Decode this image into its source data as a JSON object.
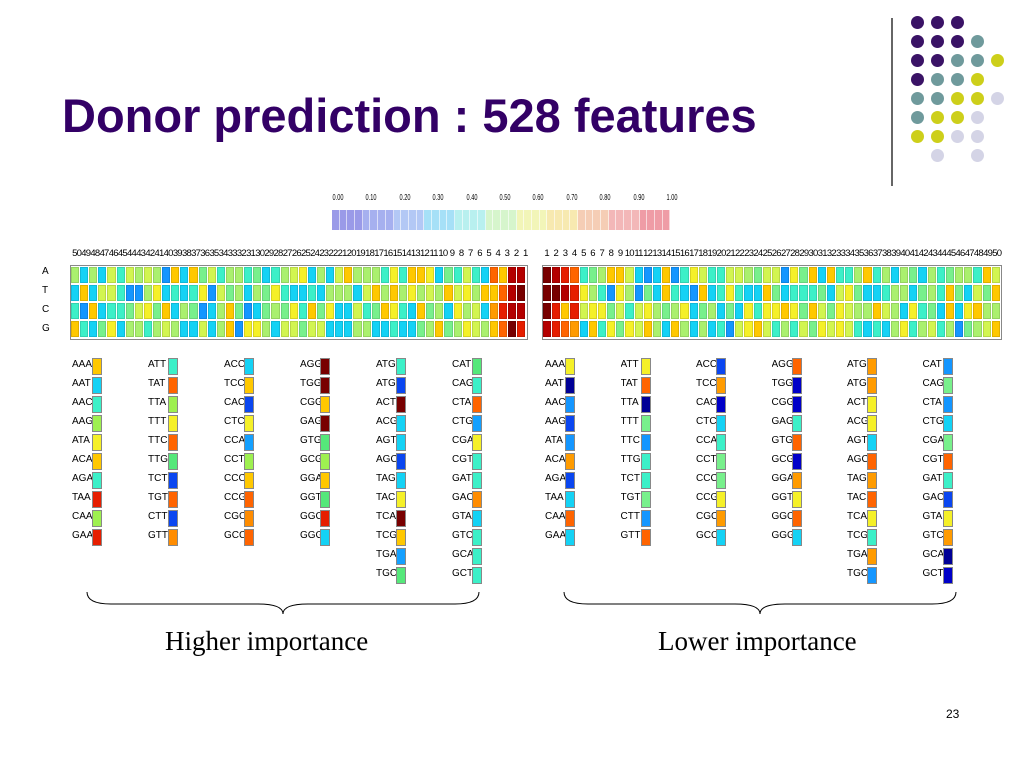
{
  "slide": {
    "title": "Donor prediction : 528 features",
    "page_number": "23"
  },
  "scale": {
    "ticks": [
      "0.00",
      "0.10",
      "0.20",
      "0.30",
      "0.40",
      "0.50",
      "0.60",
      "0.70",
      "0.80",
      "0.90",
      "1.00"
    ],
    "colors": [
      "#9a9ae8",
      "#a6b0ef",
      "#b3c8f5",
      "#a6e0f7",
      "#b8f0ef",
      "#d6f5cc",
      "#f2f5b8",
      "#f7e9b0",
      "#f5cdb5",
      "#f3b7b8",
      "#ef9ca6"
    ]
  },
  "matrix": {
    "row_labels": [
      "A",
      "T",
      "C",
      "G"
    ],
    "left_positions": [
      "50",
      "49",
      "48",
      "47",
      "46",
      "45",
      "44",
      "43",
      "42",
      "41",
      "40",
      "39",
      "38",
      "37",
      "36",
      "35",
      "34",
      "33",
      "32",
      "31",
      "30",
      "29",
      "28",
      "27",
      "26",
      "25",
      "24",
      "23",
      "22",
      "21",
      "20",
      "19",
      "18",
      "17",
      "16",
      "15",
      "14",
      "13",
      "12",
      "11",
      "10",
      "9",
      "8",
      "7",
      "6",
      "5",
      "4",
      "3",
      "2",
      "1"
    ],
    "right_positions": [
      "1",
      "2",
      "3",
      "4",
      "5",
      "6",
      "7",
      "8",
      "9",
      "10",
      "11",
      "12",
      "13",
      "14",
      "15",
      "16",
      "17",
      "18",
      "19",
      "20",
      "21",
      "22",
      "23",
      "24",
      "25",
      "26",
      "27",
      "28",
      "29",
      "30",
      "31",
      "32",
      "33",
      "34",
      "35",
      "36",
      "37",
      "38",
      "39",
      "40",
      "41",
      "42",
      "43",
      "44",
      "45",
      "46",
      "47",
      "48",
      "49",
      "50"
    ]
  },
  "kmer_tables": {
    "higher": [
      [
        "AAA",
        "AAT",
        "AAC",
        "AAG",
        "ATA",
        "ACA",
        "AGA",
        "TAA",
        "CAA",
        "GAA"
      ],
      [
        "ATT",
        "TAT",
        "TTA",
        "TTT",
        "TTC",
        "TTG",
        "TCT",
        "TGT",
        "CTT",
        "GTT"
      ],
      [
        "ACC",
        "TCC",
        "CAC",
        "CTC",
        "CCA",
        "CCT",
        "CCC",
        "CCG",
        "CGC",
        "GCC"
      ],
      [
        "AGG",
        "TGG",
        "CGG",
        "GAG",
        "GTG",
        "GCG",
        "GGA",
        "GGT",
        "GGC",
        "GGG"
      ],
      [
        "ATG",
        "ATG",
        "ACT",
        "ACG",
        "AGT",
        "AGC",
        "TAG",
        "TAC",
        "TCA",
        "TCG",
        "TGA",
        "TGC"
      ],
      [
        "CAT",
        "CAG",
        "CTA",
        "CTG",
        "CGA",
        "CGT",
        "GAT",
        "GAC",
        "GTA",
        "GTC",
        "GCA",
        "GCT"
      ]
    ],
    "lower": [
      [
        "AAA",
        "AAT",
        "AAC",
        "AAG",
        "ATA",
        "ACA",
        "AGA",
        "TAA",
        "CAA",
        "GAA"
      ],
      [
        "ATT",
        "TAT",
        "TTA",
        "TTT",
        "TTC",
        "TTG",
        "TCT",
        "TGT",
        "CTT",
        "GTT"
      ],
      [
        "ACC",
        "TCC",
        "CAC",
        "CTC",
        "CCA",
        "CCT",
        "CCC",
        "CCG",
        "CGC",
        "GCC"
      ],
      [
        "AGG",
        "TGG",
        "CGG",
        "GAG",
        "GTG",
        "GCG",
        "GGA",
        "GGT",
        "GGC",
        "GGG"
      ],
      [
        "ATG",
        "ATG",
        "ACT",
        "ACG",
        "AGT",
        "AGC",
        "TAG",
        "TAC",
        "TCA",
        "TCG",
        "TGA",
        "TGC"
      ],
      [
        "CAT",
        "CAG",
        "CTA",
        "CTG",
        "CGA",
        "CGT",
        "GAT",
        "GAC",
        "GTA",
        "GTC",
        "GCA",
        "GCT"
      ]
    ]
  },
  "labels": {
    "higher": "Higher importance",
    "lower": "Lower importance"
  }
}
